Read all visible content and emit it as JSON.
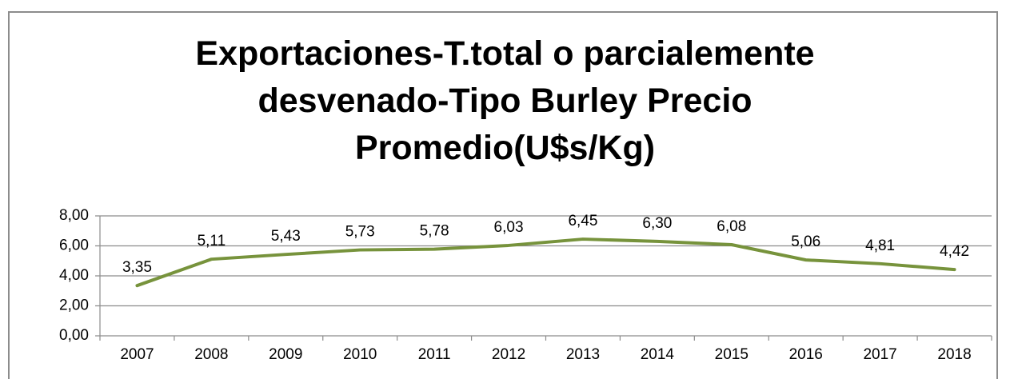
{
  "chart_data": {
    "type": "line",
    "title": "Exportaciones-T.total o parcialemente desvenado-Tipo Burley Precio Promedio(U$s/Kg)",
    "categories": [
      "2007",
      "2008",
      "2009",
      "2010",
      "2011",
      "2012",
      "2013",
      "2014",
      "2015",
      "2016",
      "2017",
      "2018"
    ],
    "series": [
      {
        "name": "Precio Promedio",
        "color": "#77933c",
        "values": [
          3.35,
          5.11,
          5.43,
          5.73,
          5.78,
          6.03,
          6.45,
          6.3,
          6.08,
          5.06,
          4.81,
          4.42
        ],
        "value_labels": [
          "3,35",
          "5,11",
          "5,43",
          "5,73",
          "5,78",
          "6,03",
          "6,45",
          "6,30",
          "6,08",
          "5,06",
          "4,81",
          "4,42"
        ]
      }
    ],
    "ylim": [
      0,
      8
    ],
    "yticks": [
      {
        "value": 0,
        "label": "0,00"
      },
      {
        "value": 2,
        "label": "2,00"
      },
      {
        "value": 4,
        "label": "4,00"
      },
      {
        "value": 6,
        "label": "6,00"
      },
      {
        "value": 8,
        "label": "8,00"
      }
    ],
    "grid": true
  }
}
